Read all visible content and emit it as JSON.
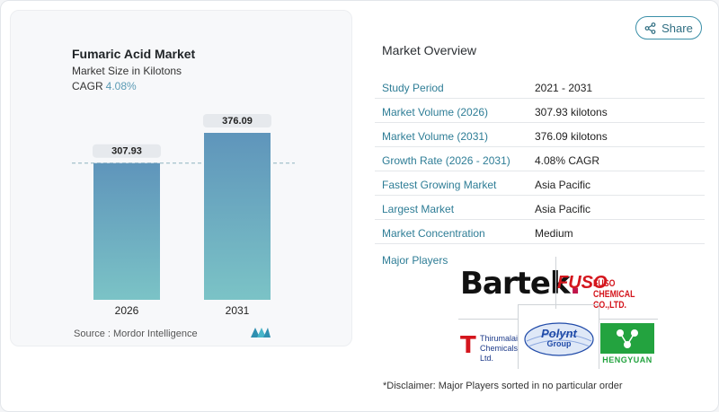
{
  "chart": {
    "title": "Fumaric Acid Market",
    "subtitle": "Market Size in Kilotons",
    "cagr_label": "CAGR",
    "cagr_value": "4.08%",
    "source": "Source :  Mordor Intelligence"
  },
  "chart_data": {
    "type": "bar",
    "categories": [
      "2026",
      "2031"
    ],
    "values": [
      307.93,
      376.09
    ],
    "value_labels": [
      "307.93",
      "376.09"
    ],
    "title": "Fumaric Acid Market",
    "ylabel": "Market Size in Kilotons",
    "reference_line": 307.93,
    "ylim": [
      0,
      376.09
    ],
    "colors": {
      "bar_top": "#5f95bb",
      "bar_bottom": "#7bc3c6",
      "label_bg": "#e6e9ed"
    }
  },
  "share": {
    "label": "Share",
    "icon": "share-icon"
  },
  "overview": {
    "title": "Market Overview",
    "rows": [
      {
        "key": "Study Period",
        "value": "2021 - 2031"
      },
      {
        "key": "Market Volume (2026)",
        "value": "307.93 kilotons"
      },
      {
        "key": "Market Volume (2031)",
        "value": "376.09 kilotons"
      },
      {
        "key": "Growth Rate (2026 - 2031)",
        "value": "4.08% CAGR"
      },
      {
        "key": "Fastest Growing Market",
        "value": "Asia Pacific"
      },
      {
        "key": "Largest Market",
        "value": "Asia Pacific"
      },
      {
        "key": "Market Concentration",
        "value": "Medium"
      }
    ],
    "players_label": "Major Players"
  },
  "players": {
    "bartek": "Bartek",
    "fuso": "FUSO",
    "fuso_sub": "FUSO CHEMICAL CO.,LTD.",
    "thirumalai_mark": "T",
    "thirumalai": "Thirumalai Chemicals Ltd.",
    "polynt": "Polynt",
    "polynt_sub": "Group",
    "hengyuan": "HENGYUAN"
  },
  "disclaimer": "*Disclaimer: Major Players sorted in no particular order"
}
